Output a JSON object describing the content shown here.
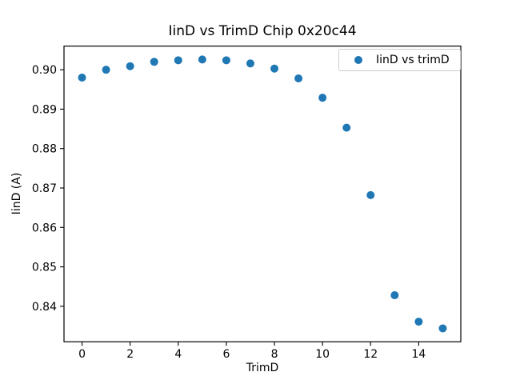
{
  "figure": {
    "background": "#ffffff",
    "axes_color": "#000000"
  },
  "chart_data": {
    "type": "scatter",
    "title": "IinD vs TrimD Chip 0x20c44",
    "xlabel": "TrimD",
    "ylabel": "IinD (A)",
    "legend": [
      "IinD vs trimD"
    ],
    "legend_position": "upper right",
    "marker_color": "#1f77b4",
    "grid": false,
    "x": [
      0,
      1,
      2,
      3,
      4,
      5,
      6,
      7,
      8,
      9,
      10,
      11,
      12,
      13,
      14,
      15
    ],
    "y": [
      0.898,
      0.9,
      0.9009,
      0.902,
      0.9024,
      0.9026,
      0.9024,
      0.9016,
      0.9003,
      0.8978,
      0.8929,
      0.8853,
      0.8682,
      0.8428,
      0.8361,
      0.8344
    ],
    "xlim": [
      -0.75,
      15.75
    ],
    "ylim": [
      0.831,
      0.906
    ],
    "xticks": [
      0,
      2,
      4,
      6,
      8,
      10,
      12,
      14
    ],
    "yticks": [
      0.84,
      0.85,
      0.86,
      0.87,
      0.88,
      0.89,
      0.9
    ],
    "ytick_decimals": 2
  }
}
